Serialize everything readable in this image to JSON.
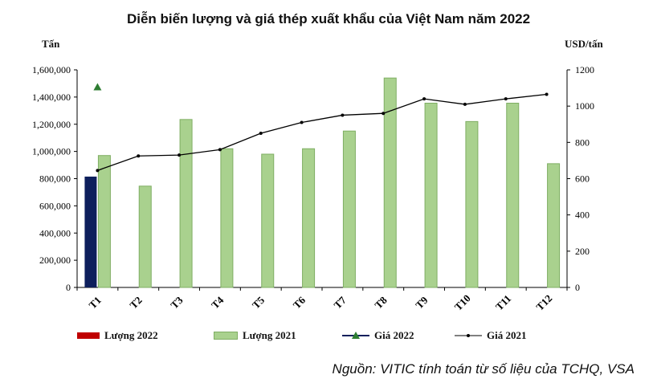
{
  "chart_data": {
    "type": "bar",
    "title": "Diễn biến lượng và giá thép xuất khẩu của Việt Nam năm 2022",
    "ylabel": "Tấn",
    "y2label": "USD/tấn",
    "ylim": [
      0,
      1600000
    ],
    "y2lim": [
      0,
      1200
    ],
    "yticks": [
      "0",
      "200,000",
      "400,000",
      "600,000",
      "800,000",
      "1,000,000",
      "1,200,000",
      "1,400,000",
      "1,600,000"
    ],
    "y2ticks": [
      "0",
      "200",
      "400",
      "600",
      "800",
      "1000",
      "1200"
    ],
    "categories": [
      "T1",
      "T2",
      "T3",
      "T4",
      "T5",
      "T6",
      "T7",
      "T8",
      "T9",
      "T10",
      "T11",
      "T12"
    ],
    "grid": false,
    "legend_position": "bottom",
    "series": [
      {
        "name": "Lượng 2022",
        "kind": "bar",
        "axis": "left",
        "color": "#0d1f5c",
        "values": [
          815000,
          null,
          null,
          null,
          null,
          null,
          null,
          null,
          null,
          null,
          null,
          null
        ]
      },
      {
        "name": "Lượng 2021",
        "kind": "bar",
        "axis": "left",
        "color": "#a9d18e",
        "values": [
          970000,
          745000,
          1235000,
          1020000,
          980000,
          1020000,
          1150000,
          1540000,
          1355000,
          1220000,
          1355000,
          910000
        ]
      },
      {
        "name": "Giá 2022",
        "kind": "marker",
        "axis": "right",
        "color": "#2e7d32",
        "values": [
          1105,
          null,
          null,
          null,
          null,
          null,
          null,
          null,
          null,
          null,
          null,
          null
        ]
      },
      {
        "name": "Giá 2021",
        "kind": "line",
        "axis": "right",
        "color": "#000000",
        "values": [
          645,
          725,
          730,
          760,
          850,
          910,
          950,
          960,
          1040,
          1010,
          1040,
          1065
        ]
      }
    ],
    "legend_swatch_colors": {
      "Lượng 2022": "#c00000"
    }
  },
  "source": "Nguồn: VITIC tính toán từ số liệu của TCHQ, VSA"
}
